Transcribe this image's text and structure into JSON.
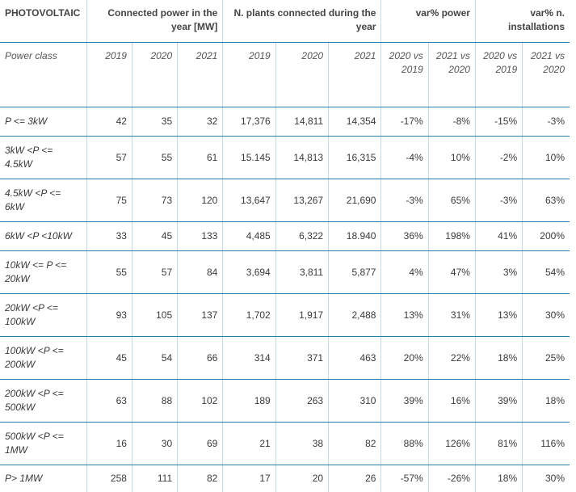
{
  "header": {
    "title": "PHOTOVOLTAIC",
    "group1": "Connected power in the year [MW]",
    "group2": "N. plants connected during the year",
    "group3": "var% power",
    "group4": "var% n. installations"
  },
  "subheader": {
    "label": "Power class",
    "cols": [
      "2019",
      "2020",
      "2021",
      "2019",
      "2020",
      "2021",
      "2020 vs 2019",
      "2021 vs 2020",
      "2020 vs 2019",
      "2021 vs 2020"
    ]
  },
  "rows": [
    {
      "label": "P <= 3kW",
      "cells": [
        "42",
        "35",
        "32",
        "17,376",
        "14,811",
        "14,354",
        "-17%",
        "-8%",
        "-15%",
        "-3%"
      ]
    },
    {
      "label": "3kW <P <= 4.5kW",
      "cells": [
        "57",
        "55",
        "61",
        "15.145",
        "14,813",
        "16,315",
        "-4%",
        "10%",
        "-2%",
        "10%"
      ]
    },
    {
      "label": "4.5kW <P <= 6kW",
      "cells": [
        "75",
        "73",
        "120",
        "13,647",
        "13,267",
        "21,690",
        "-3%",
        "65%",
        "-3%",
        "63%"
      ]
    },
    {
      "label": "6kW <P <10kW",
      "cells": [
        "33",
        "45",
        "133",
        "4,485",
        "6,322",
        "18.940",
        "36%",
        "198%",
        "41%",
        "200%"
      ]
    },
    {
      "label": "10kW <= P <= 20kW",
      "cells": [
        "55",
        "57",
        "84",
        "3,694",
        "3,811",
        "5,877",
        "4%",
        "47%",
        "3%",
        "54%"
      ]
    },
    {
      "label": "20kW <P <= 100kW",
      "cells": [
        "93",
        "105",
        "137",
        "1,702",
        "1,917",
        "2,488",
        "13%",
        "31%",
        "13%",
        "30%"
      ]
    },
    {
      "label": "100kW <P <= 200kW",
      "cells": [
        "45",
        "54",
        "66",
        "314",
        "371",
        "463",
        "20%",
        "22%",
        "18%",
        "25%"
      ]
    },
    {
      "label": "200kW <P <= 500kW",
      "cells": [
        "63",
        "88",
        "102",
        "189",
        "263",
        "310",
        "39%",
        "16%",
        "39%",
        "18%"
      ]
    },
    {
      "label": "500kW <P <= 1MW",
      "cells": [
        "16",
        "30",
        "69",
        "21",
        "38",
        "82",
        "88%",
        "126%",
        "81%",
        "116%"
      ]
    },
    {
      "label": "P> 1MW",
      "cells": [
        "258",
        "111",
        "82",
        "17",
        "20",
        "26",
        "-57%",
        "-26%",
        "18%",
        "30%"
      ]
    }
  ]
}
